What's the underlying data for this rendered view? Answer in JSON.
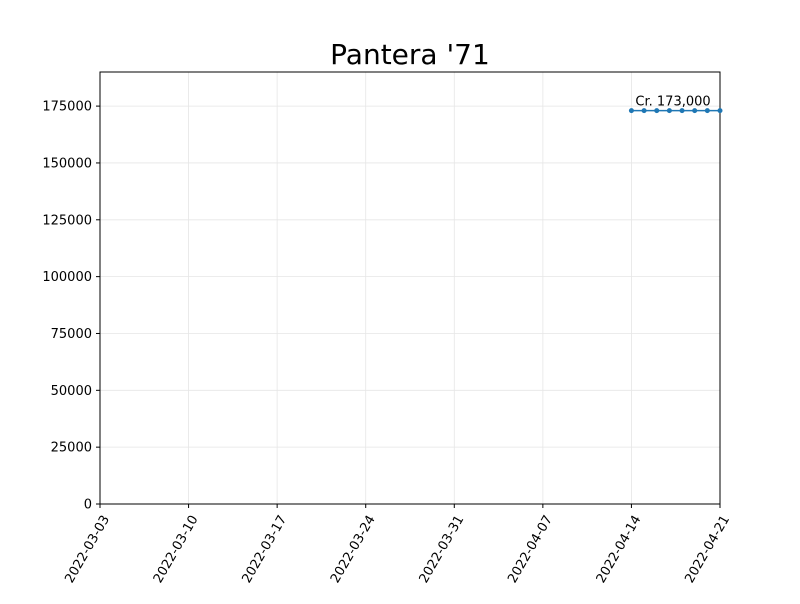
{
  "chart_data": {
    "type": "line",
    "title": "Pantera '71",
    "xlabel": "",
    "ylabel": "",
    "x_type": "date",
    "xlim": [
      "2022-03-03",
      "2022-04-21"
    ],
    "ylim": [
      0,
      190000
    ],
    "x_ticks": [
      "2022-03-03",
      "2022-03-10",
      "2022-03-17",
      "2022-03-24",
      "2022-03-31",
      "2022-04-07",
      "2022-04-14",
      "2022-04-21"
    ],
    "y_ticks": [
      0,
      25000,
      50000,
      75000,
      100000,
      125000,
      150000,
      175000
    ],
    "grid": true,
    "series": [
      {
        "x": [
          "2022-04-14",
          "2022-04-15",
          "2022-04-16",
          "2022-04-17",
          "2022-04-18",
          "2022-04-19",
          "2022-04-20",
          "2022-04-21"
        ],
        "values": [
          173000,
          173000,
          173000,
          173000,
          173000,
          173000,
          173000,
          173000
        ],
        "color": "#1f77b4",
        "marker": "circle"
      }
    ],
    "annotations": [
      {
        "x": "2022-04-14",
        "y": 173000,
        "text": "Cr. 173,000"
      }
    ]
  }
}
